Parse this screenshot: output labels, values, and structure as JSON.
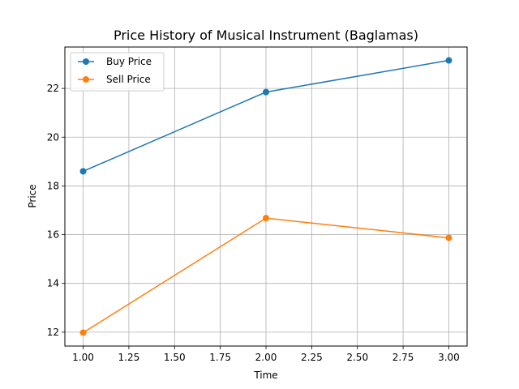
{
  "chart_data": {
    "type": "line",
    "title": "Price History of Musical Instrument (Baglamas)",
    "xlabel": "Time",
    "ylabel": "Price",
    "xlim": [
      0.9,
      3.1
    ],
    "ylim": [
      11.43,
      23.7
    ],
    "x_ticks": [
      "1.00",
      "1.25",
      "1.50",
      "1.75",
      "2.00",
      "2.25",
      "2.50",
      "2.75",
      "3.00"
    ],
    "y_ticks": [
      "12",
      "14",
      "16",
      "18",
      "20",
      "22"
    ],
    "grid": true,
    "legend_position": "upper-left",
    "series": [
      {
        "name": "Buy Price",
        "color": "#1f77b4",
        "x": [
          1,
          2,
          3
        ],
        "y": [
          18.6,
          21.85,
          23.15
        ]
      },
      {
        "name": "Sell Price",
        "color": "#ff7f0e",
        "x": [
          1,
          2,
          3
        ],
        "y": [
          11.98,
          16.68,
          15.87
        ]
      }
    ]
  }
}
